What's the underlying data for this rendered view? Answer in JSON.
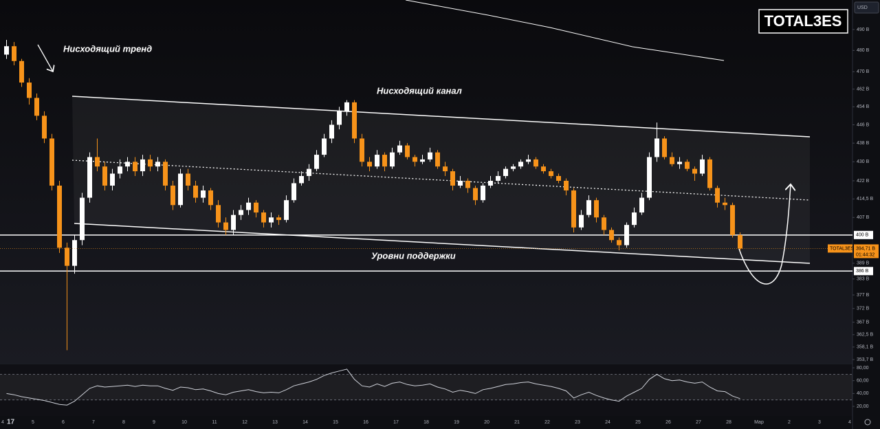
{
  "chart_data": {
    "type": "candlestick",
    "title": "TOTAL3ES",
    "currency": "USD",
    "annotations": [
      "Нисходящий тренд",
      "Нисходящий канал",
      "Уровни поддержки"
    ],
    "up_color": "#ffffff",
    "down_color": "#f7931a",
    "log_scale": true,
    "ylim": [
      352.5,
      504.5
    ],
    "yticks": [
      {
        "value": 490,
        "label": "490 B"
      },
      {
        "value": 480,
        "label": "480 B"
      },
      {
        "value": 470,
        "label": "470 B"
      },
      {
        "value": 462,
        "label": "462 B"
      },
      {
        "value": 454,
        "label": "454 B"
      },
      {
        "value": 446,
        "label": "446 B"
      },
      {
        "value": 438,
        "label": "438 B"
      },
      {
        "value": 430,
        "label": "430 B"
      },
      {
        "value": 422,
        "label": "422 B"
      },
      {
        "value": 414.5,
        "label": "414,5 B"
      },
      {
        "value": 407,
        "label": "407 B"
      },
      {
        "value": 389,
        "label": "389 B"
      },
      {
        "value": 383,
        "label": "383 B"
      },
      {
        "value": 377,
        "label": "377 B"
      },
      {
        "value": 372,
        "label": "372 B"
      },
      {
        "value": 367,
        "label": "367 B"
      },
      {
        "value": 362.5,
        "label": "362,5 B"
      },
      {
        "value": 358.1,
        "label": "358,1 B"
      },
      {
        "value": 353.7,
        "label": "353,7 B"
      }
    ],
    "levels": [
      {
        "value": 400,
        "label": "400 B"
      },
      {
        "value": 386,
        "label": "386 B"
      }
    ],
    "last_price": {
      "value": 394.71,
      "label": "394,71 B"
    },
    "countdown": "01:44:32",
    "xticks": [
      "4",
      "5",
      "6",
      "7",
      "8",
      "9",
      "10",
      "11",
      "12",
      "13",
      "14",
      "15",
      "16",
      "17",
      "18",
      "19",
      "20",
      "21",
      "22",
      "23",
      "24",
      "25",
      "26",
      "27",
      "28",
      "Мар",
      "2",
      "3",
      "4"
    ],
    "ohlc": [
      [
        478,
        485,
        476,
        482
      ],
      [
        482,
        484,
        473,
        475
      ],
      [
        475,
        476,
        463,
        465
      ],
      [
        465,
        467,
        455,
        458
      ],
      [
        458,
        460,
        448,
        450
      ],
      [
        450,
        452,
        438,
        440
      ],
      [
        440,
        442,
        418,
        420
      ],
      [
        420,
        422,
        393,
        395
      ],
      [
        395,
        397,
        357,
        388
      ],
      [
        388,
        400,
        385,
        398
      ],
      [
        398,
        417,
        396,
        415
      ],
      [
        415,
        434,
        413,
        432
      ],
      [
        432,
        440,
        426,
        428
      ],
      [
        428,
        430,
        418,
        420
      ],
      [
        420,
        427,
        418,
        425
      ],
      [
        425,
        431,
        423,
        428
      ],
      [
        428,
        432,
        426,
        430
      ],
      [
        430,
        432,
        424,
        426
      ],
      [
        426,
        433,
        424,
        431
      ],
      [
        431,
        433,
        426,
        428
      ],
      [
        428,
        432,
        426,
        430
      ],
      [
        430,
        431,
        418,
        420
      ],
      [
        420,
        422,
        410,
        412
      ],
      [
        412,
        427,
        411,
        425
      ],
      [
        425,
        427,
        418,
        420
      ],
      [
        420,
        422,
        413,
        415
      ],
      [
        415,
        420,
        413,
        418
      ],
      [
        418,
        419,
        410,
        412
      ],
      [
        412,
        414,
        403,
        405
      ],
      [
        405,
        407,
        400,
        402
      ],
      [
        402,
        410,
        400,
        408
      ],
      [
        408,
        412,
        406,
        410
      ],
      [
        410,
        415,
        408,
        413
      ],
      [
        413,
        414,
        407,
        409
      ],
      [
        409,
        410,
        403,
        405
      ],
      [
        405,
        409,
        403,
        407
      ],
      [
        407,
        408,
        404,
        406
      ],
      [
        406,
        416,
        405,
        414
      ],
      [
        414,
        423,
        413,
        421
      ],
      [
        421,
        426,
        420,
        424
      ],
      [
        424,
        429,
        422,
        427
      ],
      [
        427,
        435,
        426,
        433
      ],
      [
        433,
        442,
        432,
        440
      ],
      [
        440,
        448,
        438,
        446
      ],
      [
        446,
        454,
        444,
        452
      ],
      [
        452,
        457,
        450,
        456
      ],
      [
        456,
        457,
        438,
        440
      ],
      [
        440,
        442,
        428,
        430
      ],
      [
        430,
        432,
        426,
        428
      ],
      [
        428,
        435,
        427,
        433
      ],
      [
        433,
        434,
        426,
        428
      ],
      [
        428,
        436,
        427,
        434
      ],
      [
        434,
        439,
        433,
        437
      ],
      [
        437,
        438,
        431,
        432
      ],
      [
        432,
        433,
        428,
        430
      ],
      [
        430,
        433,
        429,
        431
      ],
      [
        431,
        436,
        430,
        434
      ],
      [
        434,
        435,
        427,
        428
      ],
      [
        428,
        430,
        424,
        426
      ],
      [
        426,
        427,
        418,
        420
      ],
      [
        420,
        424,
        419,
        422
      ],
      [
        422,
        423,
        417,
        419
      ],
      [
        419,
        420,
        412,
        414
      ],
      [
        414,
        421,
        413,
        420
      ],
      [
        420,
        424,
        419,
        422
      ],
      [
        422,
        426,
        421,
        424
      ],
      [
        424,
        428,
        423,
        427
      ],
      [
        427,
        429,
        426,
        428
      ],
      [
        428,
        431,
        427,
        430
      ],
      [
        430,
        433,
        429,
        431
      ],
      [
        431,
        432,
        427,
        428
      ],
      [
        428,
        429,
        425,
        426
      ],
      [
        426,
        427,
        423,
        424
      ],
      [
        424,
        425,
        421,
        422
      ],
      [
        422,
        423,
        416,
        418
      ],
      [
        418,
        419,
        401,
        403
      ],
      [
        403,
        410,
        402,
        408
      ],
      [
        408,
        416,
        407,
        414
      ],
      [
        414,
        415,
        405,
        407
      ],
      [
        407,
        408,
        400,
        402
      ],
      [
        402,
        403,
        397,
        398
      ],
      [
        398,
        399,
        394,
        396
      ],
      [
        396,
        405,
        395,
        404
      ],
      [
        404,
        411,
        403,
        409
      ],
      [
        409,
        417,
        408,
        415
      ],
      [
        415,
        434,
        414,
        432
      ],
      [
        432,
        447,
        430,
        440
      ],
      [
        440,
        441,
        431,
        432
      ],
      [
        432,
        434,
        428,
        429
      ],
      [
        429,
        432,
        427,
        430
      ],
      [
        430,
        431,
        426,
        427
      ],
      [
        427,
        428,
        422,
        425
      ],
      [
        425,
        433,
        424,
        431
      ],
      [
        431,
        432,
        418,
        419
      ],
      [
        419,
        420,
        411,
        413
      ],
      [
        413,
        415,
        410,
        412
      ],
      [
        412,
        413,
        399,
        400
      ],
      [
        400,
        401,
        394,
        394.71
      ]
    ],
    "rsi": {
      "values": [
        40,
        38,
        35,
        33,
        31,
        29,
        26,
        23,
        22,
        28,
        38,
        48,
        52,
        50,
        51,
        52,
        53,
        51,
        53,
        52,
        52,
        48,
        45,
        50,
        49,
        46,
        47,
        44,
        40,
        38,
        42,
        44,
        46,
        43,
        41,
        42,
        41,
        46,
        52,
        55,
        58,
        62,
        68,
        72,
        75,
        78,
        62,
        52,
        50,
        55,
        51,
        56,
        58,
        54,
        52,
        53,
        55,
        50,
        47,
        42,
        45,
        43,
        40,
        46,
        48,
        51,
        54,
        55,
        57,
        58,
        55,
        53,
        51,
        48,
        44,
        33,
        38,
        42,
        37,
        33,
        30,
        28,
        36,
        42,
        48,
        62,
        70,
        63,
        60,
        61,
        58,
        56,
        58,
        50,
        44,
        43,
        36,
        32
      ],
      "ylim": [
        10.4,
        84.3
      ],
      "yticks": [
        {
          "value": 80,
          "label": "80,00"
        },
        {
          "value": 60,
          "label": "60,00"
        },
        {
          "value": 40,
          "label": "40,00"
        },
        {
          "value": 20,
          "label": "20,00"
        }
      ],
      "bands": [
        30,
        70
      ],
      "color": "#d1d4dc"
    }
  }
}
